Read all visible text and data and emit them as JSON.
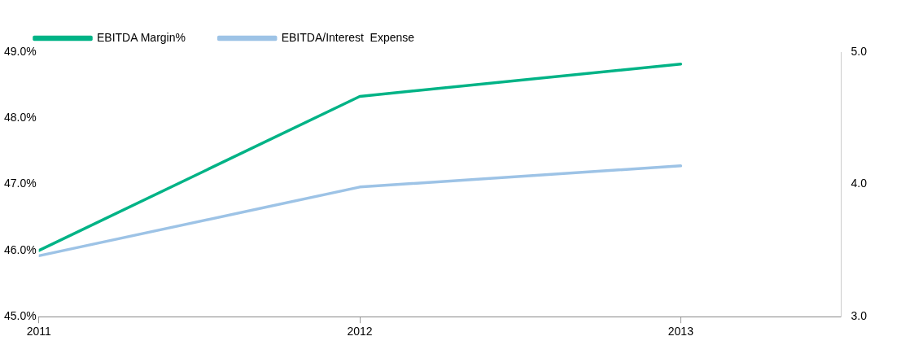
{
  "chart_data": {
    "type": "line",
    "x": [
      2011,
      2012,
      2013
    ],
    "xlim": [
      2011,
      2013.5
    ],
    "xticks": [
      2011,
      2012,
      2013
    ],
    "ylim": [
      45,
      49
    ],
    "yticks": [
      {
        "value": 45,
        "label": "45.0%"
      },
      {
        "value": 46,
        "label": "46.0%"
      },
      {
        "value": 47,
        "label": "47.0%"
      },
      {
        "value": 48,
        "label": "48.0%"
      },
      {
        "value": 49,
        "label": "49.0%"
      }
    ],
    "y2lim": [
      3,
      5
    ],
    "y2ticks": [
      {
        "value": 3,
        "label": "3.0"
      },
      {
        "value": 4,
        "label": "4.0"
      },
      {
        "value": 5,
        "label": "5.0"
      }
    ],
    "series": [
      {
        "name": "EBITDA Margin%",
        "color": "#00b386",
        "values": [
          46.0,
          48.33,
          48.82
        ]
      },
      {
        "name": "EBITDA/Interest  Expense",
        "color": "#9dc3e6",
        "axis": "y2",
        "values": [
          3.46,
          3.98,
          4.14
        ]
      }
    ],
    "legend": "top left",
    "grid": false,
    "marker": "none",
    "line_style": "solid"
  }
}
